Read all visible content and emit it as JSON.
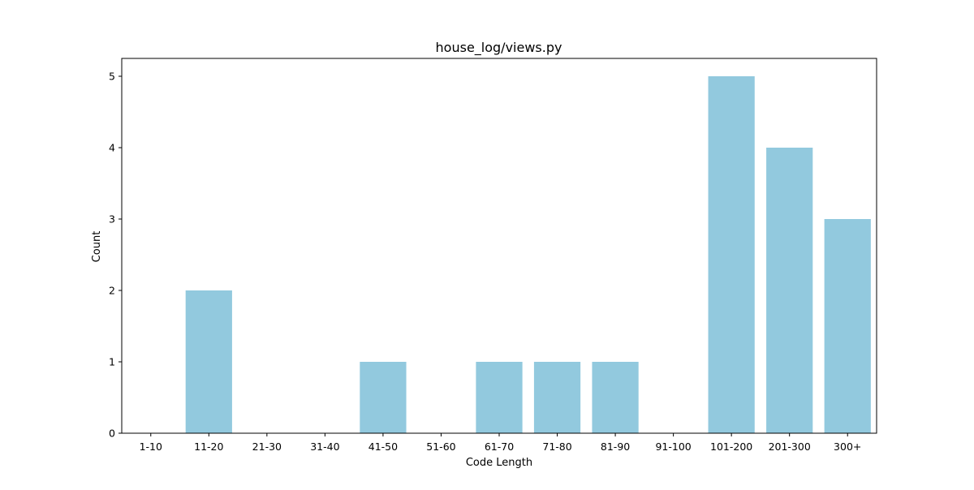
{
  "chart_data": {
    "type": "bar",
    "title": "house_log/views.py",
    "xlabel": "Code Length",
    "ylabel": "Count",
    "categories": [
      "1-10",
      "11-20",
      "21-30",
      "31-40",
      "41-50",
      "51-60",
      "61-70",
      "71-80",
      "81-90",
      "91-100",
      "101-200",
      "201-300",
      "300+"
    ],
    "values": [
      0,
      2,
      0,
      0,
      1,
      0,
      1,
      1,
      1,
      0,
      5,
      4,
      3
    ],
    "ylim": [
      0,
      5.25
    ],
    "yticks": [
      0,
      1,
      2,
      3,
      4,
      5
    ],
    "bar_color": "#92c9de",
    "grid": false,
    "legend": "none"
  }
}
